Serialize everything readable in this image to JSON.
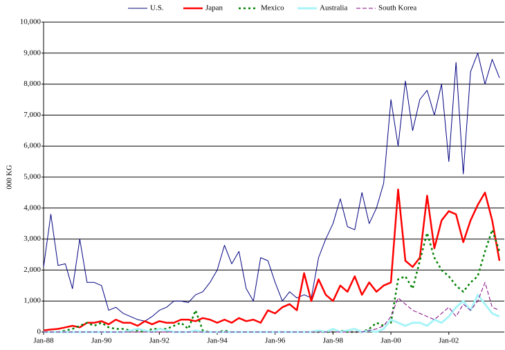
{
  "chart_data": {
    "type": "line",
    "y_label": "000 KG",
    "categories": [
      "Jan-88",
      null,
      null,
      null,
      null,
      null,
      null,
      null,
      "Jan-90",
      null,
      null,
      null,
      null,
      null,
      null,
      null,
      "Jan-92",
      null,
      null,
      null,
      null,
      null,
      null,
      null,
      "Jan-94",
      null,
      null,
      null,
      null,
      null,
      null,
      null,
      "Jan-96",
      null,
      null,
      null,
      null,
      null,
      null,
      null,
      "Jan-98",
      null,
      null,
      null,
      null,
      null,
      null,
      null,
      "Jan-00",
      null,
      null,
      null,
      null,
      null,
      null,
      null,
      "Jan-02",
      null,
      null,
      null,
      null,
      null,
      null,
      null
    ],
    "series": [
      {
        "name": "U.S.",
        "color": "#000080",
        "width": 1,
        "dash": "",
        "values": [
          2100,
          3800,
          2150,
          2200,
          1400,
          3000,
          1600,
          1600,
          1500,
          700,
          800,
          600,
          500,
          400,
          350,
          500,
          700,
          800,
          1000,
          1000,
          950,
          1200,
          1300,
          1600,
          2000,
          2800,
          2200,
          2600,
          1400,
          1000,
          2400,
          2300,
          1600,
          1000,
          1300,
          1100,
          1200,
          1100,
          2400,
          3000,
          3500,
          4300,
          3400,
          3300,
          4500,
          3500,
          4000,
          4800,
          7500,
          6000,
          8100,
          6500,
          7500,
          7800,
          7000,
          8000,
          5500,
          8700,
          5100,
          8400,
          9000,
          8000,
          8800,
          8200
        ]
      },
      {
        "name": "Japan",
        "color": "#ff0000",
        "width": 2.5,
        "dash": "",
        "values": [
          50,
          80,
          100,
          150,
          200,
          150,
          300,
          300,
          350,
          250,
          400,
          300,
          300,
          200,
          350,
          250,
          350,
          300,
          300,
          400,
          400,
          350,
          450,
          400,
          300,
          400,
          300,
          450,
          350,
          400,
          300,
          700,
          600,
          800,
          900,
          700,
          1900,
          1000,
          1700,
          1200,
          1000,
          1500,
          1300,
          1800,
          1200,
          1600,
          1300,
          1500,
          1600,
          4600,
          2300,
          2100,
          2400,
          4400,
          2700,
          3600,
          3900,
          3800,
          2900,
          3600,
          4100,
          4500,
          3600,
          2300
        ]
      },
      {
        "name": "Mexico",
        "color": "#008000",
        "width": 2.5,
        "dash": "3,4",
        "values": [
          0,
          0,
          0,
          50,
          100,
          200,
          300,
          200,
          300,
          150,
          100,
          100,
          50,
          50,
          0,
          100,
          100,
          100,
          200,
          300,
          100,
          700,
          50,
          0,
          0,
          50,
          0,
          0,
          0,
          0,
          0,
          0,
          0,
          0,
          0,
          0,
          0,
          0,
          0,
          0,
          0,
          50,
          0,
          0,
          0,
          100,
          300,
          200,
          300,
          1700,
          1800,
          1400,
          2300,
          3200,
          2400,
          2000,
          1800,
          1500,
          1300,
          1600,
          1800,
          2600,
          3300,
          2600
        ]
      },
      {
        "name": "Australia",
        "color": "#a8f4f8",
        "width": 3,
        "dash": "",
        "values": [
          0,
          0,
          0,
          0,
          0,
          0,
          0,
          0,
          0,
          0,
          0,
          0,
          50,
          100,
          50,
          0,
          100,
          50,
          0,
          0,
          0,
          50,
          0,
          0,
          0,
          0,
          0,
          0,
          0,
          0,
          0,
          0,
          0,
          0,
          0,
          0,
          0,
          0,
          50,
          0,
          100,
          0,
          50,
          100,
          0,
          50,
          0,
          100,
          400,
          300,
          200,
          300,
          300,
          200,
          400,
          300,
          500,
          800,
          1000,
          700,
          1200,
          900,
          600,
          500
        ]
      },
      {
        "name": "South Korea",
        "color": "#800080",
        "width": 1,
        "dash": "6,3",
        "values": [
          0,
          0,
          0,
          0,
          0,
          0,
          0,
          0,
          0,
          0,
          0,
          0,
          0,
          0,
          0,
          0,
          0,
          0,
          0,
          0,
          0,
          0,
          0,
          0,
          0,
          0,
          0,
          0,
          0,
          0,
          0,
          0,
          0,
          0,
          0,
          0,
          0,
          0,
          0,
          0,
          0,
          0,
          0,
          0,
          0,
          50,
          100,
          200,
          500,
          1100,
          900,
          700,
          600,
          500,
          400,
          600,
          800,
          500,
          900,
          700,
          1000,
          1600,
          800,
          700
        ]
      }
    ],
    "ylim": [
      0,
      10000
    ],
    "yticks": [
      0,
      {
        "value": 1000,
        "label": "1,000"
      },
      {
        "value": 2000,
        "label": "2,000"
      },
      {
        "value": 3000,
        "label": "3,000"
      },
      {
        "value": 4000,
        "label": "4,000"
      },
      {
        "value": 5000,
        "label": "5,000"
      },
      {
        "value": 6000,
        "label": "6,000"
      },
      {
        "value": 7000,
        "label": "7,000"
      },
      {
        "value": 8000,
        "label": "8,000"
      },
      {
        "value": 9000,
        "label": "9,000"
      },
      {
        "value": 10000,
        "label": "10,000"
      }
    ],
    "grid": true
  }
}
